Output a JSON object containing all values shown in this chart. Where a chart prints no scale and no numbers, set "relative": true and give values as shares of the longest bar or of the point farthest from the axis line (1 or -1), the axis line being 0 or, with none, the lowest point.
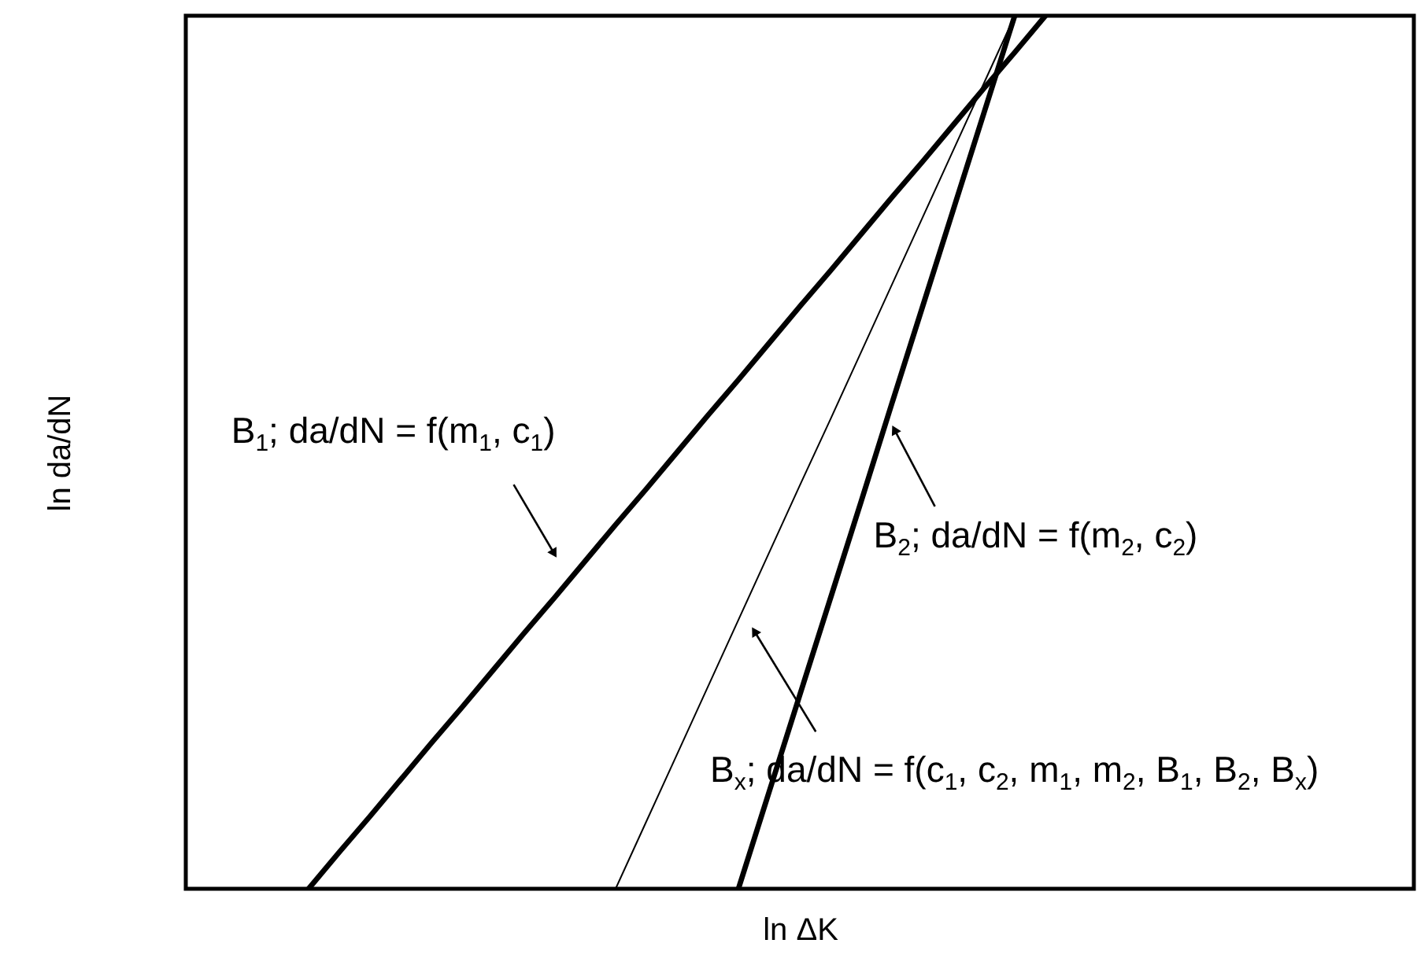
{
  "chart_data": {
    "type": "line",
    "relative": true,
    "xlabel": "ln ΔK",
    "ylabel": "ln da/dN",
    "tick_labels": false,
    "categories": [
      null,
      null,
      null,
      null,
      null,
      null,
      null,
      null,
      null,
      null,
      null,
      null,
      null,
      null,
      null,
      null,
      null,
      null,
      null,
      null,
      null,
      null,
      null,
      null,
      null,
      null,
      null,
      null,
      null,
      null,
      null,
      null,
      null,
      null,
      null,
      null,
      null,
      null,
      null,
      null,
      null
    ],
    "series": [
      {
        "color": "#000000",
        "values": [
          null,
          null,
          null,
          null,
          0,
          0.042,
          0.083,
          0.125,
          0.167,
          0.208,
          0.25,
          0.292,
          0.333,
          0.375,
          0.417,
          0.458,
          0.5,
          0.542,
          0.583,
          0.625,
          0.667,
          0.708,
          0.75,
          0.792,
          0.833,
          0.875,
          0.917,
          0.958,
          1,
          null,
          null,
          null,
          null,
          null,
          null,
          null,
          null,
          null,
          null,
          null,
          null
        ]
      },
      {
        "color": "#000000",
        "values": [
          null,
          null,
          null,
          null,
          null,
          null,
          null,
          null,
          null,
          null,
          null,
          null,
          null,
          null,
          null,
          null,
          null,
          null,
          0,
          0.111,
          0.222,
          0.333,
          0.444,
          0.556,
          0.667,
          0.778,
          0.889,
          1,
          null,
          null,
          null,
          null,
          null,
          null,
          null,
          null,
          null,
          null,
          null,
          null,
          null
        ]
      },
      {
        "color": "#000000",
        "values": [
          null,
          null,
          null,
          null,
          null,
          null,
          null,
          null,
          null,
          null,
          null,
          null,
          null,
          null,
          0,
          0.077,
          0.154,
          0.231,
          0.308,
          0.385,
          0.462,
          0.538,
          0.615,
          0.692,
          0.769,
          0.846,
          0.923,
          1,
          null,
          null,
          null,
          null,
          null,
          null,
          null,
          null,
          null,
          null,
          null,
          null,
          null
        ]
      }
    ],
    "annotations": [
      "B$_{1}$; da/dN = f(m$_{1}$, c$_{1}$)",
      "B$_{2}$; da/dN = f(m$_{2}$, c$_{2}$)",
      "B$_{x}$; da/dN = f(c$_{1}$, c$_{2}$, m$_{1}$, m$_{2}$, B$_{1}$, B$_{2}$, B$_{x}$)"
    ]
  }
}
